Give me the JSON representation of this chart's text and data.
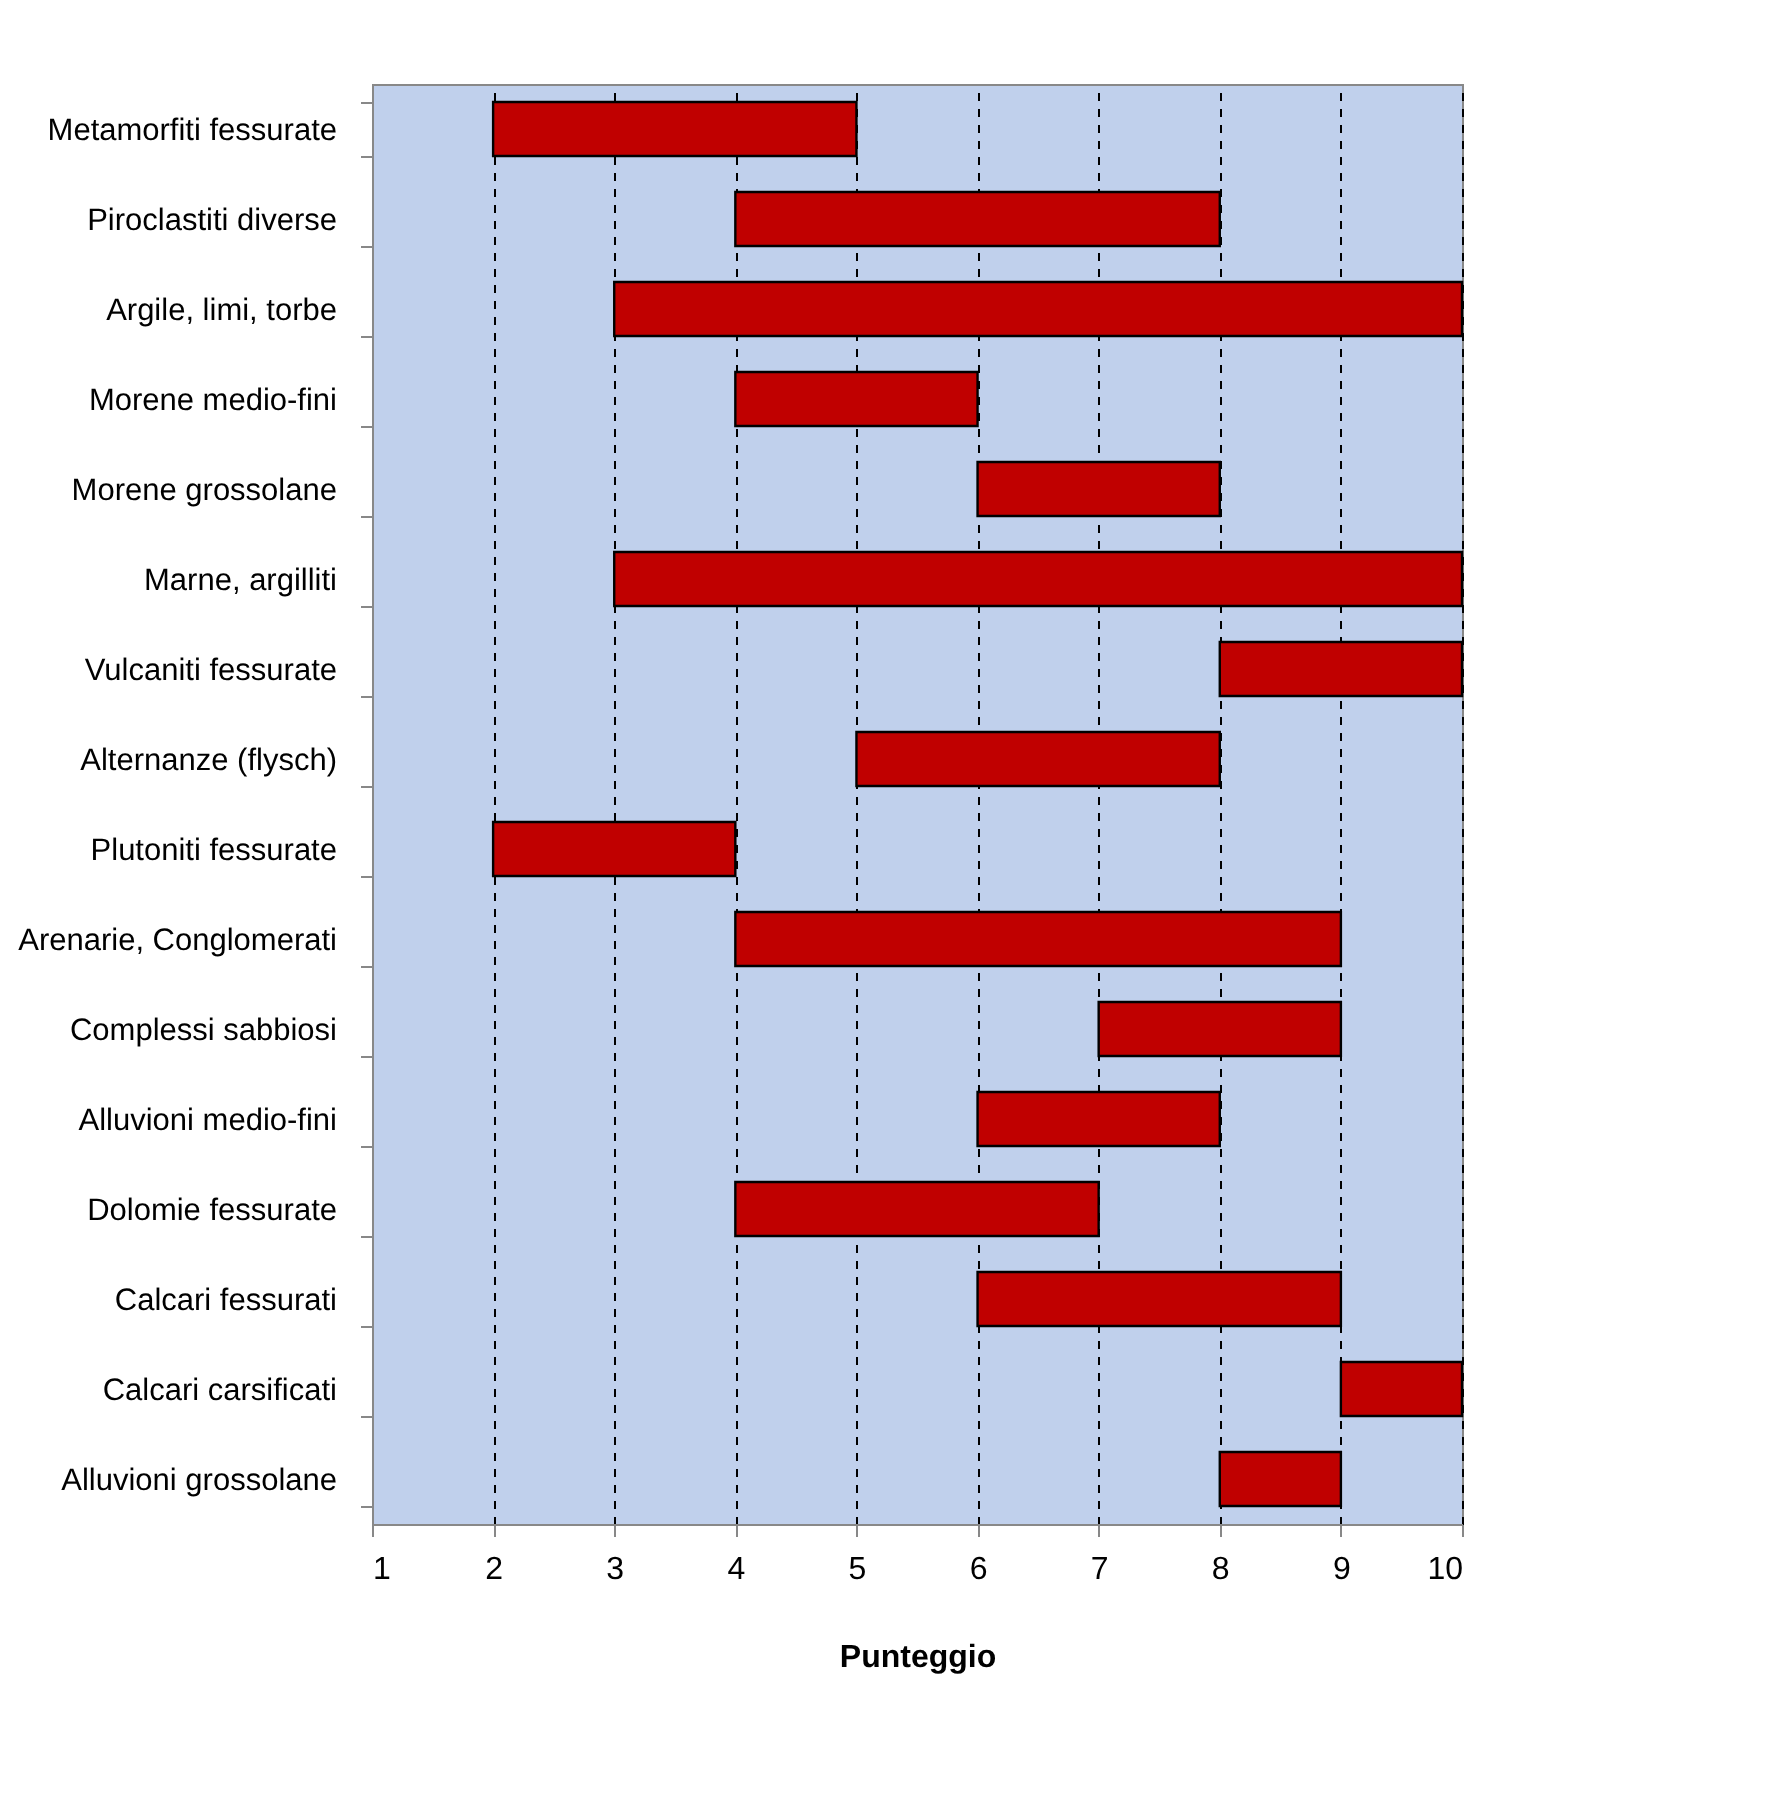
{
  "chart_data": {
    "type": "bar",
    "orientation": "horizontal",
    "xlabel": "Punteggio",
    "categories": [
      "Metamorfiti fessurate",
      "Piroclastiti diverse",
      "Argile, limi, torbe",
      "Morene medio-fini",
      "Morene grossolane",
      "Marne, argilliti",
      "Vulcaniti fessurate",
      "Alternanze (flysch)",
      "Plutoniti fessurate",
      "Arenarie, Conglomerati",
      "Complessi sabbiosi",
      "Alluvioni medio-fini",
      "Dolomie fessurate",
      "Calcari fessurati",
      "Calcari carsificati",
      "Alluvioni grossolane"
    ],
    "base": [
      2,
      4,
      3,
      4,
      6,
      3,
      8,
      5,
      2,
      4,
      7,
      6,
      4,
      6,
      9,
      8
    ],
    "values": [
      3,
      4,
      7,
      2,
      2,
      7,
      2,
      3,
      2,
      5,
      2,
      2,
      3,
      3,
      1,
      1
    ],
    "color": "#c00000",
    "xlim": [
      1,
      10
    ],
    "xticks": [
      1,
      2,
      3,
      4,
      5,
      6,
      7,
      8,
      9,
      10
    ],
    "grid": "x"
  }
}
